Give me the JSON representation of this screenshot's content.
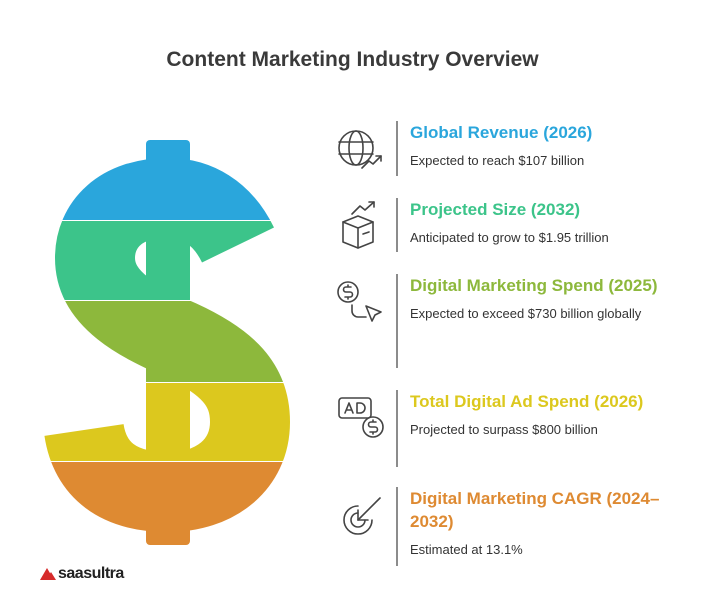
{
  "header": {
    "title": "Content Marketing Industry Overview"
  },
  "items": [
    {
      "title": "Global Revenue (2026)",
      "description": "Expected to reach $107 billion",
      "color": "#2aa6dc"
    },
    {
      "title": "Projected Size (2032)",
      "description": "Anticipated to grow to $1.95 trillion",
      "color": "#3cc48a"
    },
    {
      "title": "Digital Marketing Spend (2025)",
      "description": "Expected to exceed $730 billion globally",
      "color": "#8db83c"
    },
    {
      "title": "Total Digital Ad Spend (2026)",
      "description": "Projected to surpass $800 billion",
      "color": "#dcc81e"
    },
    {
      "title": "Digital Marketing CAGR (2024–2032)",
      "description": "Estimated at 13.1%",
      "color": "#de8a32"
    }
  ],
  "footer": {
    "brand": "saasultra"
  }
}
